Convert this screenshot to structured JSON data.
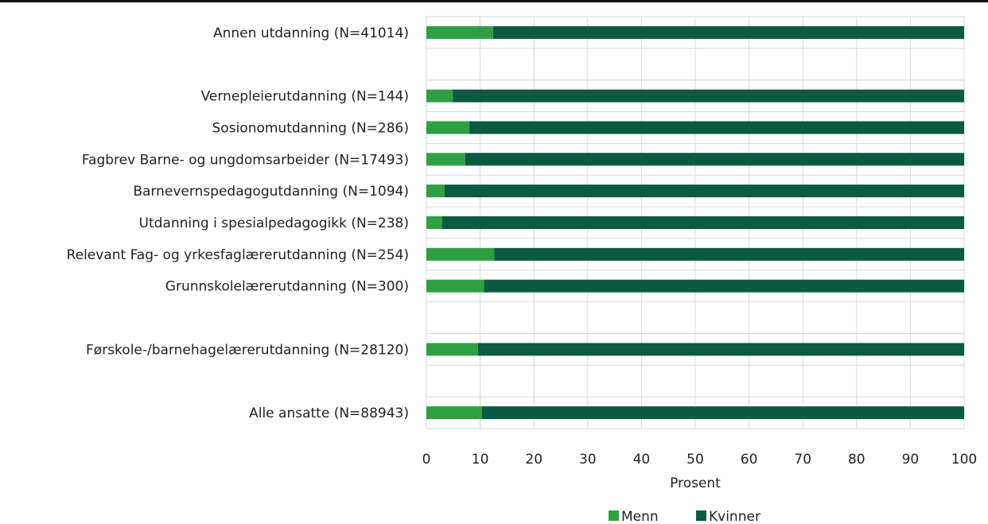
{
  "chart_data": {
    "type": "bar",
    "orientation": "horizontal",
    "stacked": true,
    "xlabel": "Prosent",
    "ylabel": "",
    "xlim": [
      0,
      100
    ],
    "xticks": [
      0,
      10,
      20,
      30,
      40,
      50,
      60,
      70,
      80,
      90,
      100
    ],
    "grid": true,
    "legend_position": "bottom",
    "colors": {
      "Menn": "#2ea043",
      "Kvinner": "#0b5a41"
    },
    "rows": [
      {
        "category": "Annen utdanning (N=41014)",
        "values": [
          12.4,
          87.6
        ]
      },
      {
        "category": "",
        "values": [
          null,
          null
        ]
      },
      {
        "category": "Vernepleierutdanning (N=144)",
        "values": [
          4.9,
          95.1
        ]
      },
      {
        "category": "Sosionomutdanning (N=286)",
        "values": [
          8.0,
          92.0
        ]
      },
      {
        "category": "Fagbrev Barne- og ungdomsarbeider (N=17493)",
        "values": [
          7.2,
          92.8
        ]
      },
      {
        "category": "Barnevernspedagogutdanning (N=1094)",
        "values": [
          3.4,
          96.6
        ]
      },
      {
        "category": "Utdanning i spesialpedagogikk (N=238)",
        "values": [
          2.9,
          97.1
        ]
      },
      {
        "category": "Relevant Fag- og yrkesfaglærerutdanning (N=254)",
        "values": [
          12.6,
          87.4
        ]
      },
      {
        "category": "Grunnskolelærerutdanning (N=300)",
        "values": [
          10.7,
          89.3
        ]
      },
      {
        "category": "",
        "values": [
          null,
          null
        ]
      },
      {
        "category": "Førskole-/barnehagelærerutdanning (N=28120)",
        "values": [
          9.6,
          90.4
        ]
      },
      {
        "category": "",
        "values": [
          null,
          null
        ]
      },
      {
        "category": "Alle ansatte (N=88943)",
        "values": [
          10.3,
          89.7
        ]
      }
    ],
    "series": [
      {
        "name": "Menn"
      },
      {
        "name": "Kvinner"
      }
    ]
  }
}
